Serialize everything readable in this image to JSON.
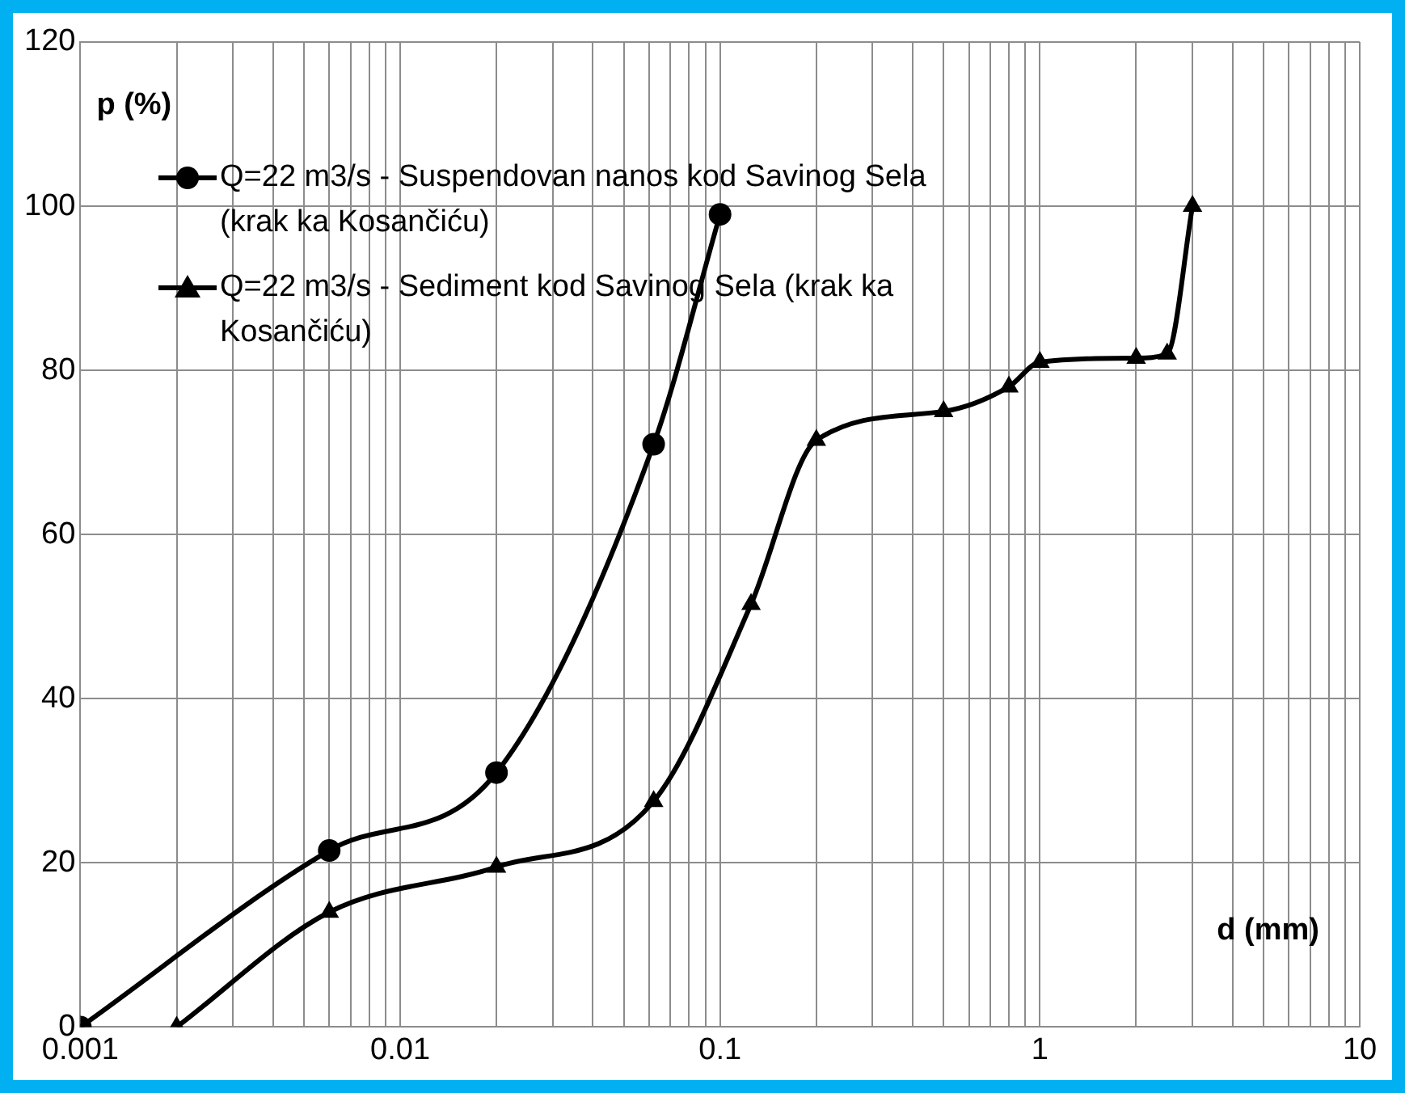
{
  "chart_data": {
    "type": "line",
    "xlabel": "d (mm)",
    "ylabel": "p (%)",
    "log": "x",
    "xlim": [
      0.001,
      10
    ],
    "xticks": [
      0.001,
      {
        "value": 0.002,
        "label": null
      },
      {
        "value": 0.003,
        "label": null
      },
      {
        "value": 0.004,
        "label": null
      },
      {
        "value": 0.005,
        "label": null
      },
      {
        "value": 0.006,
        "label": null
      },
      {
        "value": 0.007,
        "label": null
      },
      {
        "value": 0.008,
        "label": null
      },
      {
        "value": 0.009,
        "label": null
      },
      0.01,
      {
        "value": 0.02,
        "label": null
      },
      {
        "value": 0.03,
        "label": null
      },
      {
        "value": 0.04,
        "label": null
      },
      {
        "value": 0.05,
        "label": null
      },
      {
        "value": 0.06,
        "label": null
      },
      {
        "value": 0.07,
        "label": null
      },
      {
        "value": 0.08,
        "label": null
      },
      {
        "value": 0.09,
        "label": null
      },
      0.1,
      {
        "value": 0.2,
        "label": null
      },
      {
        "value": 0.3,
        "label": null
      },
      {
        "value": 0.4,
        "label": null
      },
      {
        "value": 0.5,
        "label": null
      },
      {
        "value": 0.6,
        "label": null
      },
      {
        "value": 0.7,
        "label": null
      },
      {
        "value": 0.8,
        "label": null
      },
      {
        "value": 0.9,
        "label": null
      },
      1,
      {
        "value": 2,
        "label": null
      },
      {
        "value": 3,
        "label": null
      },
      {
        "value": 4,
        "label": null
      },
      {
        "value": 5,
        "label": null
      },
      {
        "value": 6,
        "label": null
      },
      {
        "value": 7,
        "label": null
      },
      {
        "value": 8,
        "label": null
      },
      {
        "value": 9,
        "label": null
      },
      10
    ],
    "ylim": [
      0,
      120
    ],
    "yticks": [
      0,
      20,
      40,
      60,
      80,
      100,
      120
    ],
    "grid": true,
    "legend": "top left",
    "line_style": "solid",
    "series": [
      {
        "name": "Q=22 m3/s - Suspendovan nanos kod Savinog Sela (krak ka Kosančiću)",
        "color": "#000000",
        "marker": "circle",
        "x": [
          0.001,
          0.006,
          0.02,
          0.062,
          0.1
        ],
        "values": [
          0,
          21.5,
          31,
          71,
          99
        ]
      },
      {
        "name": "Q=22 m3/s - Sediment kod Savinog Sela (krak ka Kosančiću)",
        "color": "#000000",
        "marker": "triangle",
        "x": [
          0.002,
          0.006,
          0.02,
          0.062,
          0.125,
          0.2,
          0.5,
          0.8,
          1,
          2,
          2.5,
          3
        ],
        "values": [
          0,
          14,
          19.5,
          27.5,
          51.5,
          71.5,
          75,
          78,
          81,
          81.5,
          82,
          100
        ]
      }
    ]
  }
}
